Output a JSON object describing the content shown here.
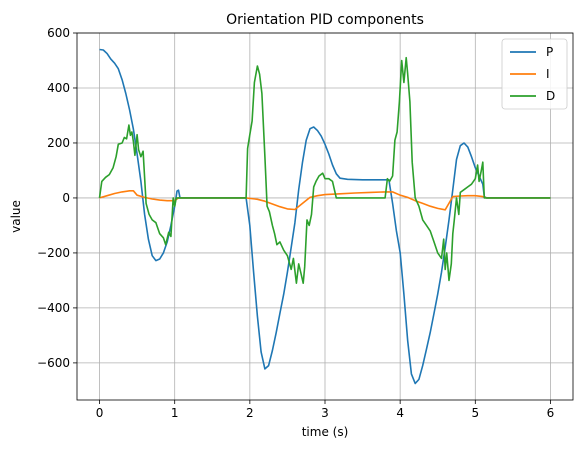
{
  "chart_data": {
    "type": "line",
    "title": "Orientation PID components",
    "xlabel": "time (s)",
    "ylabel": "value",
    "xlim": [
      -0.3,
      6.3
    ],
    "ylim": [
      -735,
      600
    ],
    "xticks": [
      0,
      1,
      2,
      3,
      4,
      5,
      6
    ],
    "yticks": [
      -600,
      -400,
      -200,
      0,
      200,
      400,
      600
    ],
    "xtick_labels": [
      "0",
      "1",
      "2",
      "3",
      "4",
      "5",
      "6"
    ],
    "ytick_labels": [
      "−600",
      "−400",
      "−200",
      "0",
      "200",
      "400",
      "600"
    ],
    "grid": true,
    "legend_position": "top-right",
    "series": [
      {
        "name": "P",
        "color": "#1f77b4",
        "points": [
          [
            0,
            540
          ],
          [
            0.05,
            538
          ],
          [
            0.1,
            525
          ],
          [
            0.15,
            505
          ],
          [
            0.2,
            490
          ],
          [
            0.25,
            470
          ],
          [
            0.3,
            430
          ],
          [
            0.35,
            380
          ],
          [
            0.4,
            320
          ],
          [
            0.45,
            250
          ],
          [
            0.5,
            160
          ],
          [
            0.55,
            60
          ],
          [
            0.6,
            -60
          ],
          [
            0.65,
            -150
          ],
          [
            0.7,
            -210
          ],
          [
            0.75,
            -228
          ],
          [
            0.8,
            -222
          ],
          [
            0.85,
            -200
          ],
          [
            0.9,
            -160
          ],
          [
            0.95,
            -100
          ],
          [
            1.0,
            -30
          ],
          [
            1.03,
            25
          ],
          [
            1.05,
            28
          ],
          [
            1.07,
            0
          ],
          [
            1.1,
            0
          ],
          [
            1.5,
            0
          ],
          [
            1.95,
            0
          ],
          [
            2.0,
            -100
          ],
          [
            2.05,
            -270
          ],
          [
            2.1,
            -430
          ],
          [
            2.15,
            -560
          ],
          [
            2.2,
            -622
          ],
          [
            2.25,
            -610
          ],
          [
            2.3,
            -555
          ],
          [
            2.35,
            -490
          ],
          [
            2.4,
            -420
          ],
          [
            2.45,
            -350
          ],
          [
            2.5,
            -270
          ],
          [
            2.55,
            -180
          ],
          [
            2.6,
            -90
          ],
          [
            2.65,
            30
          ],
          [
            2.7,
            130
          ],
          [
            2.75,
            210
          ],
          [
            2.8,
            252
          ],
          [
            2.85,
            258
          ],
          [
            2.9,
            245
          ],
          [
            2.95,
            225
          ],
          [
            3.0,
            195
          ],
          [
            3.05,
            160
          ],
          [
            3.1,
            120
          ],
          [
            3.15,
            88
          ],
          [
            3.2,
            72
          ],
          [
            3.3,
            68
          ],
          [
            3.5,
            66
          ],
          [
            3.7,
            66
          ],
          [
            3.8,
            66
          ],
          [
            3.85,
            66
          ],
          [
            3.9,
            -20
          ],
          [
            3.95,
            -120
          ],
          [
            4.0,
            -200
          ],
          [
            4.05,
            -350
          ],
          [
            4.1,
            -520
          ],
          [
            4.15,
            -640
          ],
          [
            4.2,
            -675
          ],
          [
            4.25,
            -660
          ],
          [
            4.3,
            -610
          ],
          [
            4.35,
            -550
          ],
          [
            4.4,
            -490
          ],
          [
            4.45,
            -420
          ],
          [
            4.5,
            -350
          ],
          [
            4.55,
            -270
          ],
          [
            4.6,
            -180
          ],
          [
            4.65,
            -80
          ],
          [
            4.7,
            30
          ],
          [
            4.75,
            140
          ],
          [
            4.8,
            190
          ],
          [
            4.85,
            200
          ],
          [
            4.9,
            185
          ],
          [
            4.95,
            150
          ],
          [
            5.0,
            110
          ],
          [
            5.05,
            80
          ],
          [
            5.1,
            50
          ],
          [
            5.12,
            5
          ],
          [
            5.15,
            0
          ],
          [
            5.5,
            0
          ],
          [
            6.0,
            0
          ]
        ]
      },
      {
        "name": "I",
        "color": "#ff7f0e",
        "points": [
          [
            0,
            0
          ],
          [
            0.1,
            8
          ],
          [
            0.2,
            16
          ],
          [
            0.3,
            22
          ],
          [
            0.4,
            26
          ],
          [
            0.45,
            26
          ],
          [
            0.5,
            10
          ],
          [
            0.6,
            2
          ],
          [
            0.7,
            -4
          ],
          [
            0.8,
            -8
          ],
          [
            0.9,
            -10
          ],
          [
            1.0,
            -10
          ],
          [
            1.05,
            0
          ],
          [
            1.5,
            0
          ],
          [
            1.95,
            0
          ],
          [
            2.1,
            -5
          ],
          [
            2.2,
            -12
          ],
          [
            2.3,
            -22
          ],
          [
            2.4,
            -32
          ],
          [
            2.5,
            -40
          ],
          [
            2.6,
            -42
          ],
          [
            2.7,
            -20
          ],
          [
            2.8,
            2
          ],
          [
            2.9,
            8
          ],
          [
            3.0,
            12
          ],
          [
            3.2,
            15
          ],
          [
            3.4,
            18
          ],
          [
            3.6,
            20
          ],
          [
            3.8,
            22
          ],
          [
            3.9,
            22
          ],
          [
            4.0,
            10
          ],
          [
            4.1,
            2
          ],
          [
            4.2,
            -10
          ],
          [
            4.3,
            -20
          ],
          [
            4.4,
            -30
          ],
          [
            4.5,
            -38
          ],
          [
            4.6,
            -43
          ],
          [
            4.7,
            5
          ],
          [
            4.8,
            7
          ],
          [
            4.9,
            8
          ],
          [
            5.0,
            8
          ],
          [
            5.1,
            5
          ],
          [
            5.15,
            0
          ],
          [
            6.0,
            0
          ]
        ]
      },
      {
        "name": "D",
        "color": "#2ca02c",
        "points": [
          [
            0,
            0
          ],
          [
            0.03,
            60
          ],
          [
            0.08,
            75
          ],
          [
            0.13,
            85
          ],
          [
            0.18,
            110
          ],
          [
            0.22,
            150
          ],
          [
            0.25,
            195
          ],
          [
            0.3,
            200
          ],
          [
            0.33,
            220
          ],
          [
            0.36,
            215
          ],
          [
            0.39,
            265
          ],
          [
            0.41,
            228
          ],
          [
            0.43,
            240
          ],
          [
            0.45,
            205
          ],
          [
            0.47,
            155
          ],
          [
            0.5,
            230
          ],
          [
            0.52,
            175
          ],
          [
            0.55,
            150
          ],
          [
            0.58,
            170
          ],
          [
            0.62,
            -20
          ],
          [
            0.66,
            -60
          ],
          [
            0.7,
            -80
          ],
          [
            0.75,
            -90
          ],
          [
            0.8,
            -130
          ],
          [
            0.85,
            -145
          ],
          [
            0.88,
            -170
          ],
          [
            0.92,
            -125
          ],
          [
            0.95,
            -140
          ],
          [
            0.98,
            0
          ],
          [
            1.0,
            -30
          ],
          [
            1.02,
            0
          ],
          [
            1.5,
            0
          ],
          [
            1.95,
            0
          ],
          [
            1.97,
            180
          ],
          [
            2.0,
            230
          ],
          [
            2.03,
            280
          ],
          [
            2.06,
            420
          ],
          [
            2.1,
            480
          ],
          [
            2.13,
            450
          ],
          [
            2.16,
            380
          ],
          [
            2.2,
            150
          ],
          [
            2.23,
            -30
          ],
          [
            2.26,
            -50
          ],
          [
            2.3,
            -100
          ],
          [
            2.33,
            -130
          ],
          [
            2.36,
            -170
          ],
          [
            2.4,
            -160
          ],
          [
            2.45,
            -190
          ],
          [
            2.5,
            -210
          ],
          [
            2.55,
            -260
          ],
          [
            2.58,
            -220
          ],
          [
            2.62,
            -310
          ],
          [
            2.65,
            -240
          ],
          [
            2.68,
            -275
          ],
          [
            2.71,
            -310
          ],
          [
            2.73,
            -250
          ],
          [
            2.76,
            -80
          ],
          [
            2.79,
            -100
          ],
          [
            2.82,
            -60
          ],
          [
            2.85,
            40
          ],
          [
            2.88,
            60
          ],
          [
            2.92,
            80
          ],
          [
            2.97,
            90
          ],
          [
            3.0,
            70
          ],
          [
            3.05,
            70
          ],
          [
            3.1,
            60
          ],
          [
            3.15,
            0
          ],
          [
            3.2,
            0
          ],
          [
            3.3,
            0
          ],
          [
            3.5,
            0
          ],
          [
            3.7,
            0
          ],
          [
            3.8,
            0
          ],
          [
            3.83,
            70
          ],
          [
            3.86,
            60
          ],
          [
            3.9,
            80
          ],
          [
            3.93,
            210
          ],
          [
            3.96,
            240
          ],
          [
            3.99,
            350
          ],
          [
            4.02,
            500
          ],
          [
            4.05,
            420
          ],
          [
            4.08,
            510
          ],
          [
            4.1,
            450
          ],
          [
            4.13,
            350
          ],
          [
            4.16,
            130
          ],
          [
            4.2,
            0
          ],
          [
            4.25,
            -30
          ],
          [
            4.3,
            -80
          ],
          [
            4.35,
            -100
          ],
          [
            4.4,
            -120
          ],
          [
            4.45,
            -160
          ],
          [
            4.5,
            -200
          ],
          [
            4.55,
            -220
          ],
          [
            4.58,
            -150
          ],
          [
            4.6,
            -260
          ],
          [
            4.62,
            -200
          ],
          [
            4.65,
            -300
          ],
          [
            4.68,
            -240
          ],
          [
            4.7,
            -130
          ],
          [
            4.72,
            -80
          ],
          [
            4.75,
            0
          ],
          [
            4.78,
            -60
          ],
          [
            4.8,
            20
          ],
          [
            4.85,
            30
          ],
          [
            4.9,
            40
          ],
          [
            4.95,
            50
          ],
          [
            5.0,
            70
          ],
          [
            5.03,
            120
          ],
          [
            5.05,
            60
          ],
          [
            5.08,
            100
          ],
          [
            5.1,
            130
          ],
          [
            5.12,
            0
          ],
          [
            5.15,
            0
          ],
          [
            5.5,
            0
          ],
          [
            6.0,
            0
          ]
        ]
      }
    ]
  }
}
